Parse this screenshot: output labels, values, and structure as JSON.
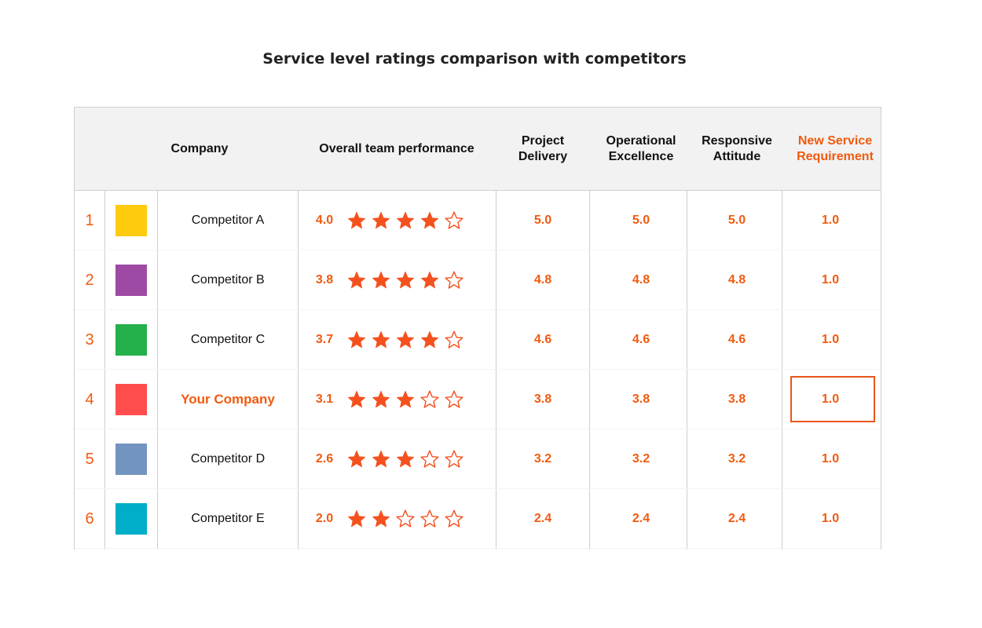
{
  "title": "Service level ratings comparison with competitors",
  "colors": {
    "accent": "#f15a0f",
    "star": "#f4511e",
    "header_bg": "#f2f2f2",
    "grid": "#cfcfcf"
  },
  "headers": {
    "company": "Company",
    "overall": "Overall team performance",
    "project_delivery": "Project Delivery",
    "operational_excellence": "Operational Excellence",
    "responsive_attitude": "Responsive Attitude",
    "new_service": "New Service Requirement"
  },
  "chart_data": {
    "type": "table",
    "columns": [
      "Company",
      "Overall team performance",
      "Project Delivery",
      "Operational Excellence",
      "Responsive Attitude",
      "New Service Requirement"
    ],
    "rows": [
      {
        "index": "1",
        "company": "Competitor A",
        "color": "#fecb0f",
        "overall": "4.0",
        "stars_filled": 4,
        "stars_total": 5,
        "project_delivery": "5.0",
        "operational_excellence": "5.0",
        "responsive_attitude": "5.0",
        "new_service": "1.0",
        "highlight": false
      },
      {
        "index": "2",
        "company": "Competitor B",
        "color": "#9e4aa4",
        "overall": "3.8",
        "stars_filled": 4,
        "stars_total": 5,
        "project_delivery": "4.8",
        "operational_excellence": "4.8",
        "responsive_attitude": "4.8",
        "new_service": "1.0",
        "highlight": false
      },
      {
        "index": "3",
        "company": "Competitor C",
        "color": "#24b04a",
        "overall": "3.7",
        "stars_filled": 4,
        "stars_total": 5,
        "project_delivery": "4.6",
        "operational_excellence": "4.6",
        "responsive_attitude": "4.6",
        "new_service": "1.0",
        "highlight": false
      },
      {
        "index": "4",
        "company": "Your Company",
        "color": "#ff4d4d",
        "overall": "3.1",
        "stars_filled": 3,
        "stars_total": 5,
        "project_delivery": "3.8",
        "operational_excellence": "3.8",
        "responsive_attitude": "3.8",
        "new_service": "1.0",
        "highlight": true
      },
      {
        "index": "5",
        "company": "Competitor D",
        "color": "#7394c0",
        "overall": "2.6",
        "stars_filled": 3,
        "stars_total": 5,
        "project_delivery": "3.2",
        "operational_excellence": "3.2",
        "responsive_attitude": "3.2",
        "new_service": "1.0",
        "highlight": false
      },
      {
        "index": "6",
        "company": "Competitor E",
        "color": "#00aec9",
        "overall": "2.0",
        "stars_filled": 2,
        "stars_total": 5,
        "project_delivery": "2.4",
        "operational_excellence": "2.4",
        "responsive_attitude": "2.4",
        "new_service": "1.0",
        "highlight": false
      }
    ]
  }
}
